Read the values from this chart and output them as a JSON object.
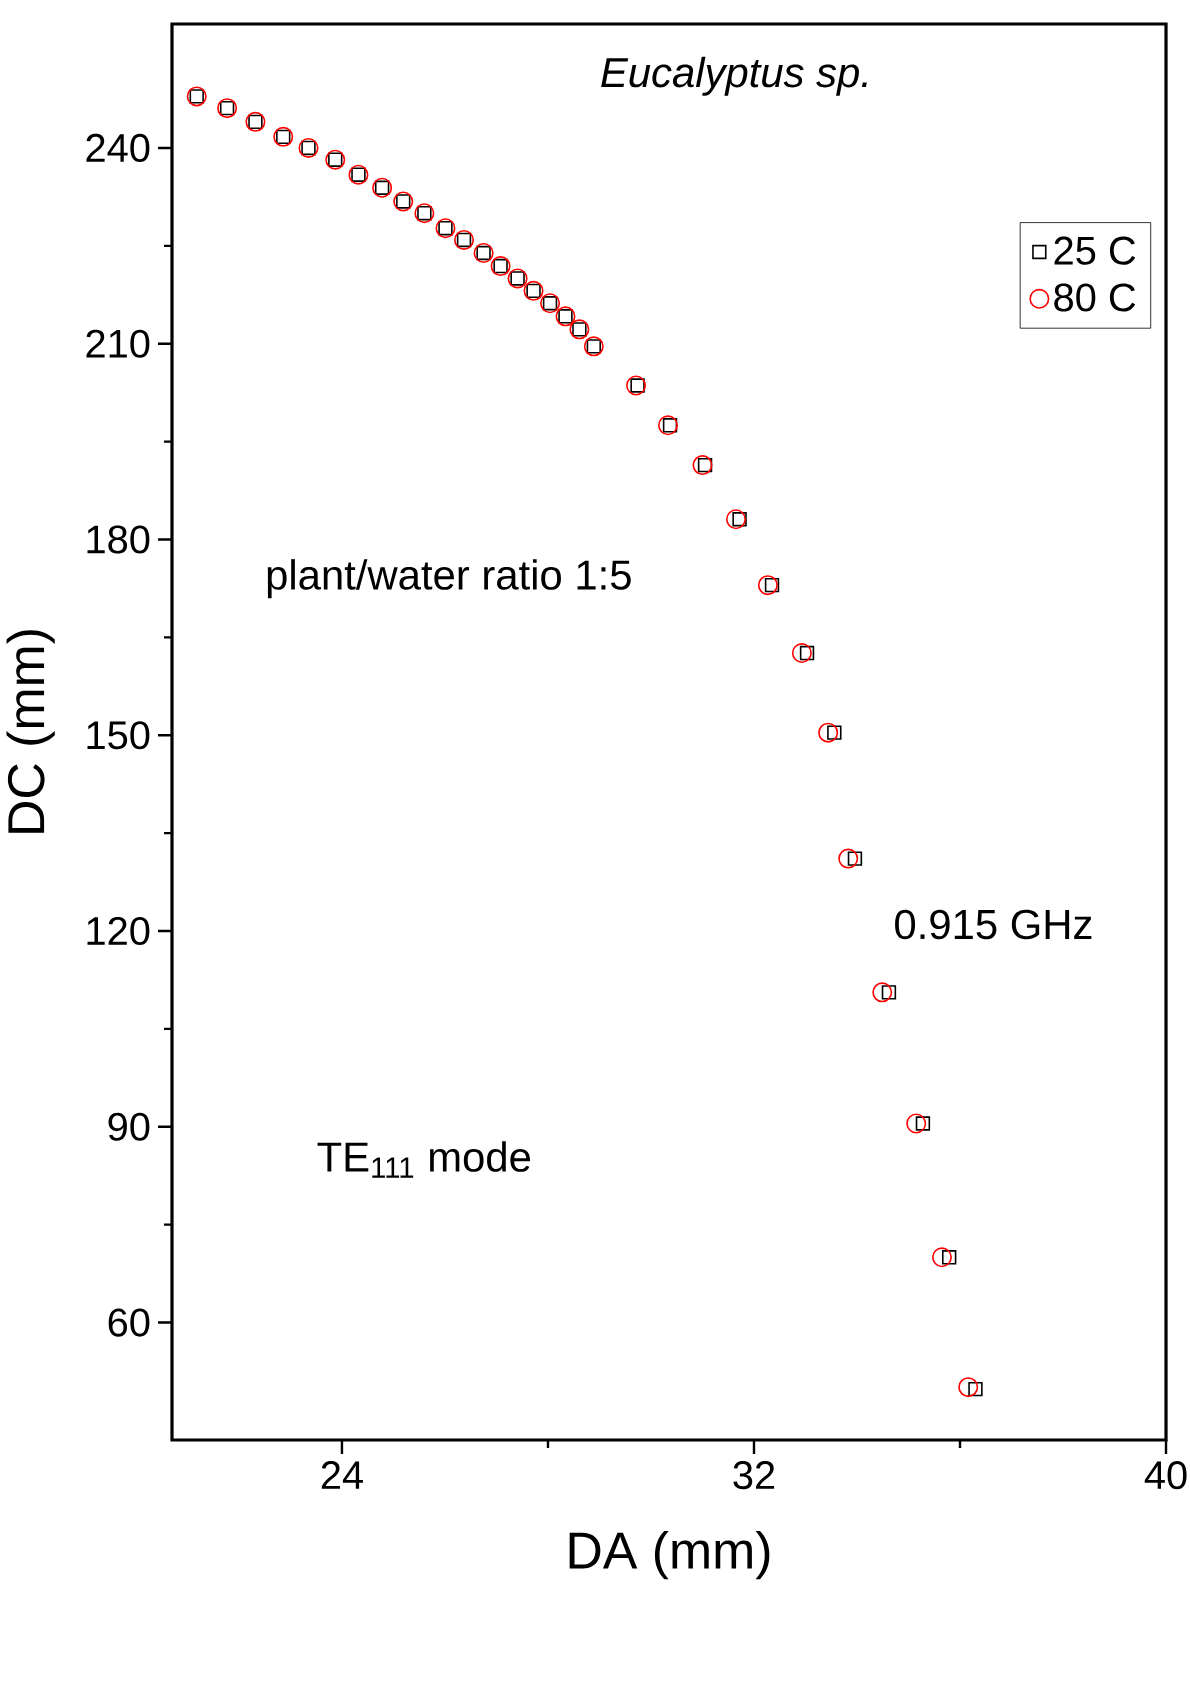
{
  "chart_data": {
    "type": "scatter",
    "xlabel": "DA (mm)",
    "ylabel": "DC (mm)",
    "xlim": [
      20.7,
      40
    ],
    "ylim": [
      42,
      259
    ],
    "xticks": [
      24,
      32,
      40
    ],
    "yticks": [
      60,
      90,
      120,
      150,
      180,
      210,
      240
    ],
    "legend": "top right",
    "grid": false,
    "annotations": [
      "Eucalyptus sp.",
      "plant/water ratio 1:5",
      "0.915 GHz",
      "TE$_{111}$ mode"
    ],
    "series": [
      {
        "name": "25 C",
        "color": "#000000",
        "marker": "square",
        "x": [
          21.18,
          21.77,
          22.32,
          22.86,
          23.35,
          23.87,
          24.32,
          24.78,
          25.19,
          25.6,
          26.01,
          26.37,
          26.75,
          27.08,
          27.41,
          27.72,
          28.04,
          28.34,
          28.61,
          28.89,
          29.74,
          30.37,
          31.05,
          31.72,
          32.35,
          33.03,
          33.56,
          33.96,
          34.62,
          35.28,
          35.79,
          36.3
        ],
        "values": [
          247.9,
          246.1,
          244.0,
          241.7,
          240.0,
          238.2,
          235.9,
          233.9,
          231.8,
          230.0,
          227.7,
          225.9,
          223.9,
          221.9,
          220.0,
          218.1,
          216.2,
          214.2,
          212.2,
          209.6,
          203.6,
          197.5,
          191.4,
          183.1,
          173.0,
          162.6,
          150.4,
          131.1,
          110.6,
          90.5,
          70.0,
          49.8
        ]
      },
      {
        "name": "80 C",
        "color": "#ff0000",
        "marker": "circle",
        "x": [
          21.18,
          21.77,
          22.32,
          22.86,
          23.35,
          23.87,
          24.32,
          24.78,
          25.19,
          25.6,
          26.01,
          26.37,
          26.75,
          27.08,
          27.41,
          27.72,
          28.04,
          28.34,
          28.61,
          28.89,
          29.71,
          30.33,
          31.0,
          31.65,
          32.27,
          32.93,
          33.44,
          33.83,
          34.49,
          35.15,
          35.65,
          36.16
        ],
        "values": [
          247.9,
          246.1,
          244.0,
          241.7,
          240.0,
          238.2,
          235.9,
          233.9,
          231.8,
          230.0,
          227.7,
          225.9,
          223.9,
          221.9,
          220.0,
          218.1,
          216.2,
          214.2,
          212.2,
          209.6,
          203.6,
          197.5,
          191.4,
          183.1,
          173.0,
          162.6,
          150.4,
          131.1,
          110.6,
          90.5,
          70.0,
          50.1
        ]
      }
    ]
  }
}
